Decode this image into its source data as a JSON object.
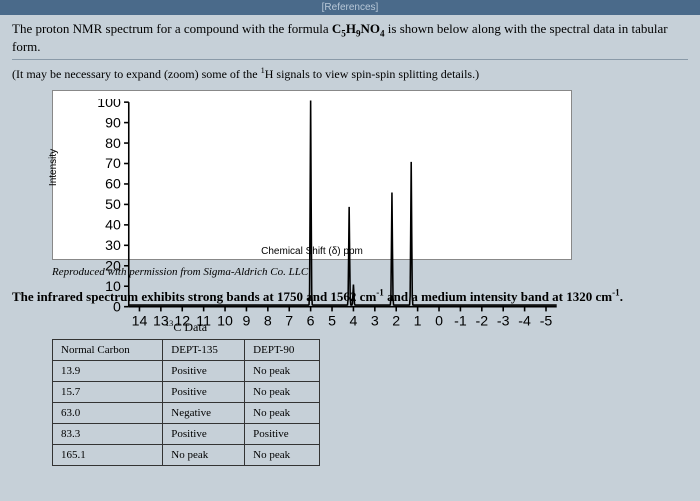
{
  "header": {
    "references": "[References]"
  },
  "prompt": {
    "line1_pre": "The proton NMR spectrum for a compound with the formula ",
    "formula_parts": [
      "C",
      "5",
      "H",
      "9",
      "NO",
      "4"
    ],
    "line1_post": " is shown below along with the spectral data in tabular form.",
    "hint_pre": "(It may be necessary to expand (zoom) some of the ",
    "hint_sup": "1",
    "hint_post": "H signals to view spin-spin splitting details.)"
  },
  "chart": {
    "type": "line-spectrum",
    "ylabel": "Intensity",
    "xlabel": "Chemical Shift (δ) ppm",
    "xlim": [
      14.5,
      -5.5
    ],
    "ylim": [
      0,
      100
    ],
    "yticks": [
      0,
      10,
      20,
      30,
      40,
      50,
      60,
      70,
      80,
      90,
      100
    ],
    "xticks": [
      14,
      13,
      12,
      11,
      10,
      9,
      8,
      7,
      6,
      5,
      4,
      3,
      2,
      1,
      0,
      -1,
      -2,
      -3,
      -4,
      -5
    ],
    "peaks": [
      {
        "x": 6.0,
        "height": 100
      },
      {
        "x": 4.2,
        "height": 48
      },
      {
        "x": 4.0,
        "height": 10
      },
      {
        "x": 2.2,
        "height": 55
      },
      {
        "x": 1.3,
        "height": 70
      }
    ],
    "baseline_noise": 2,
    "line_color": "#000000",
    "line_width": 1,
    "axis_color": "#000000",
    "tick_fontsize": 9,
    "label_fontsize": 10,
    "background_color": "#ffffff"
  },
  "attribution": "Reproduced with permission from Sigma-Aldrich Co. LLC",
  "ir_text": {
    "pre": "The infrared spectrum exhibits strong bands at 1750 and 1562 cm",
    "sup1": "-1",
    "mid": " and a medium intensity band at 1320 cm",
    "sup2": "-1",
    "post": "."
  },
  "table": {
    "title_sup": "13",
    "title_post": "C Data",
    "columns": [
      "Normal Carbon",
      "DEPT-135",
      "DEPT-90"
    ],
    "rows": [
      [
        "13.9",
        "Positive",
        "No peak"
      ],
      [
        "15.7",
        "Positive",
        "No peak"
      ],
      [
        "63.0",
        "Negative",
        "No peak"
      ],
      [
        "83.3",
        "Positive",
        "Positive"
      ],
      [
        "165.1",
        "No peak",
        "No peak"
      ]
    ]
  }
}
